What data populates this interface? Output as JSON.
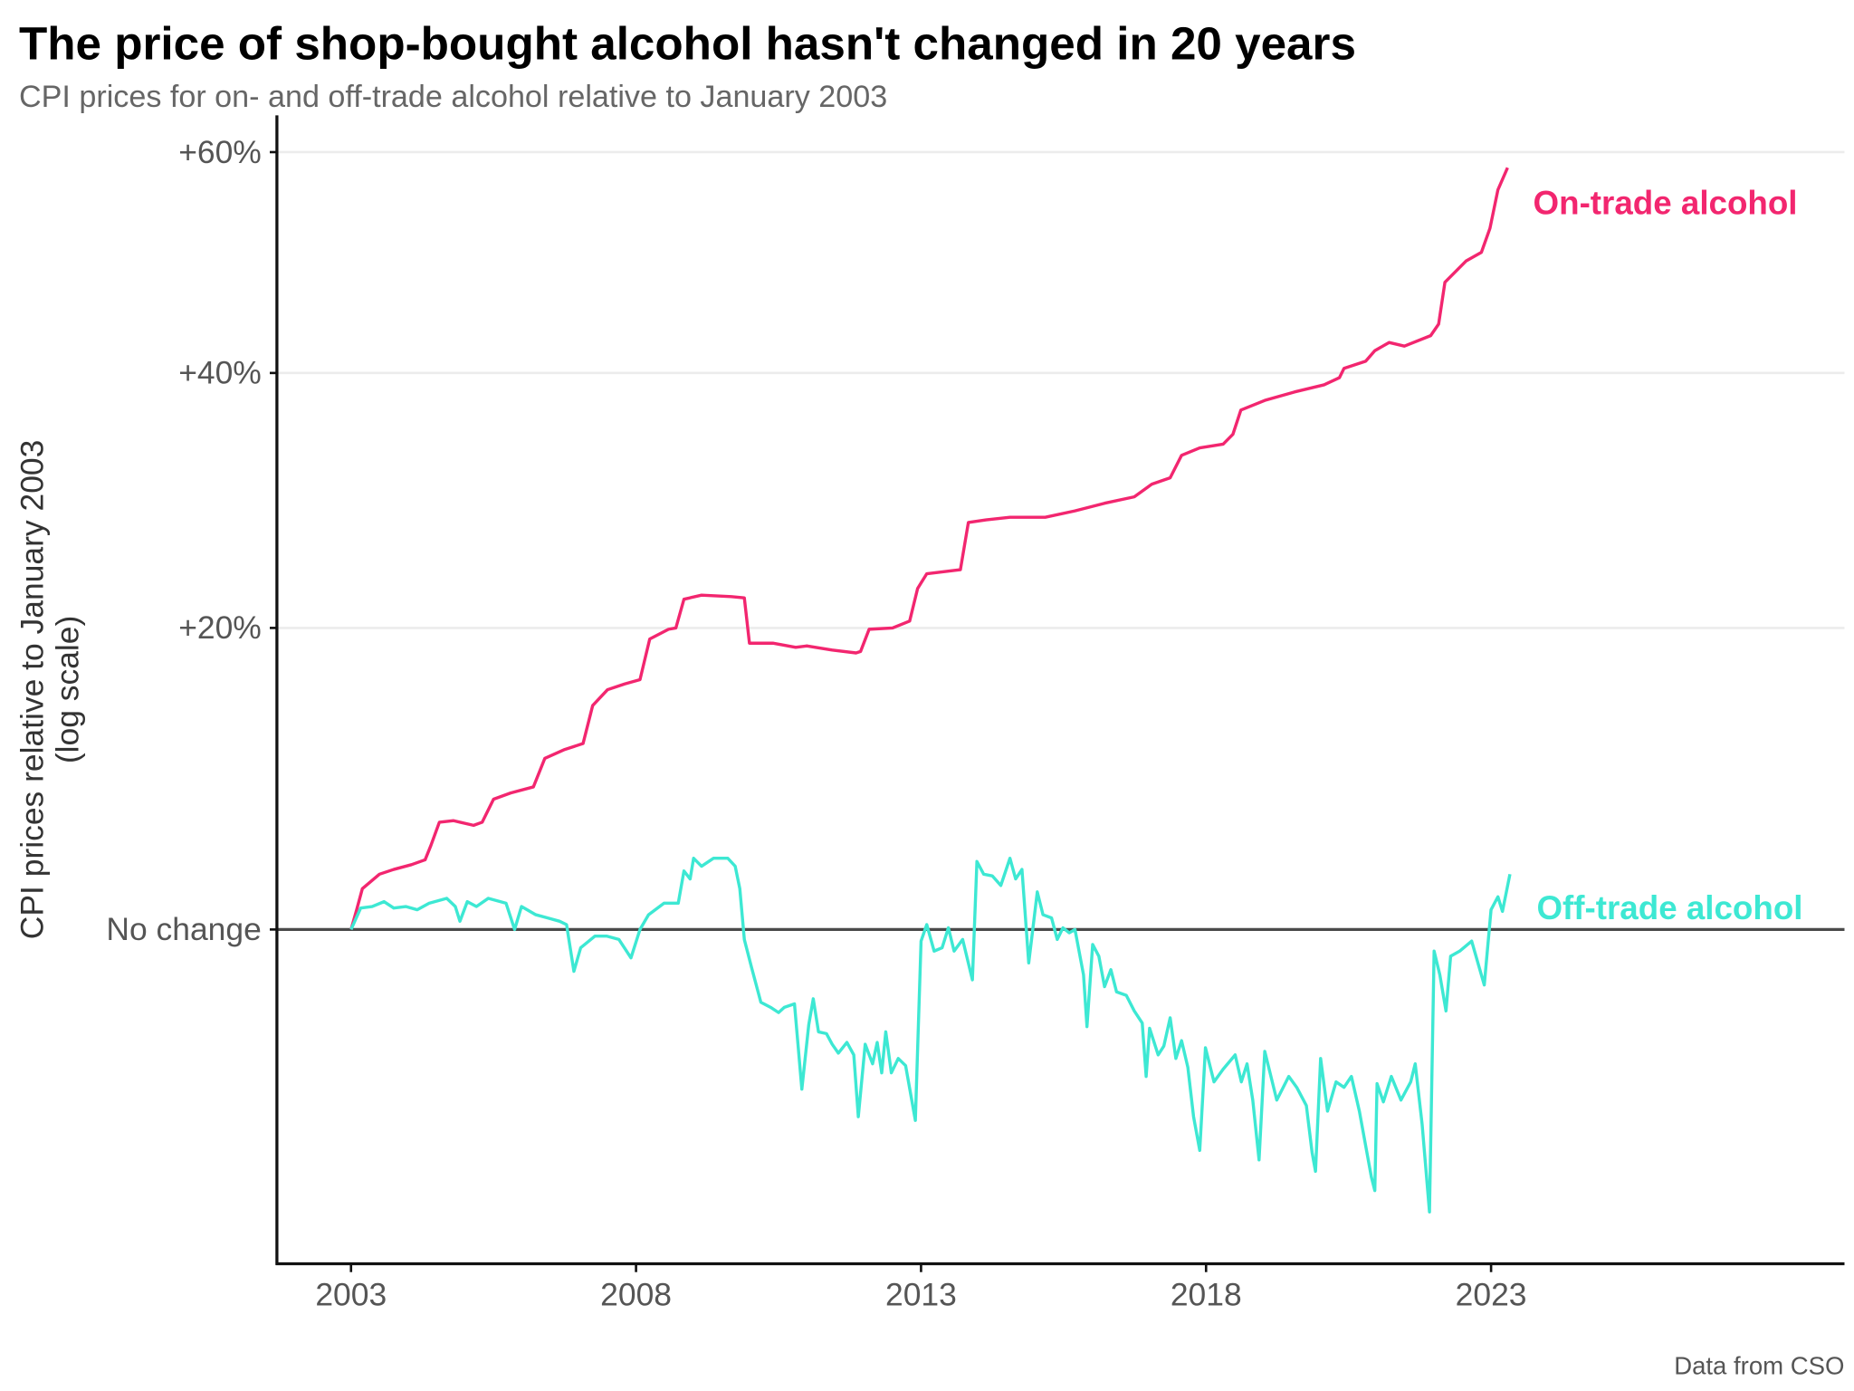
{
  "chart_data": {
    "type": "line",
    "title": "The price of shop-bought alcohol hasn't changed in 20 years",
    "subtitle": "CPI prices for on- and off-trade alcohol relative to January 2003",
    "ylabel": [
      "CPI prices relative to January 2003",
      "(log scale)"
    ],
    "xlabel": "",
    "caption": "Data from CSO",
    "y_scale": "log",
    "xlim": [
      2001.7,
      2029.2
    ],
    "ylim_percent": [
      -18.3,
      63.6
    ],
    "x_ticks": [
      2003,
      2008,
      2013,
      2018,
      2023
    ],
    "x_tick_labels": [
      "2003",
      "2008",
      "2013",
      "2018",
      "2023"
    ],
    "y_ticks": [
      0,
      20,
      40,
      60
    ],
    "y_tick_labels": [
      "No change",
      "+20%",
      "+40%",
      "+60%"
    ],
    "grid": "horizontal",
    "series": [
      {
        "name": "On-trade alcohol",
        "color": "#f2266f",
        "points": [
          [
            2003.0,
            0
          ],
          [
            2003.1,
            1.2
          ],
          [
            2003.2,
            2.5
          ],
          [
            2003.5,
            3.4
          ],
          [
            2003.75,
            3.7
          ],
          [
            2004.06,
            4.0
          ],
          [
            2004.3,
            4.3
          ],
          [
            2004.4,
            5.2
          ],
          [
            2004.55,
            6.7
          ],
          [
            2004.8,
            6.8
          ],
          [
            2005.15,
            6.5
          ],
          [
            2005.3,
            6.7
          ],
          [
            2005.5,
            8.2
          ],
          [
            2005.8,
            8.6
          ],
          [
            2006.2,
            9.0
          ],
          [
            2006.4,
            10.9
          ],
          [
            2006.75,
            11.5
          ],
          [
            2007.07,
            11.9
          ],
          [
            2007.24,
            14.5
          ],
          [
            2007.5,
            15.6
          ],
          [
            2007.8,
            16.0
          ],
          [
            2008.07,
            16.3
          ],
          [
            2008.24,
            19.2
          ],
          [
            2008.57,
            19.9
          ],
          [
            2008.7,
            20.0
          ],
          [
            2008.84,
            22.1
          ],
          [
            2009.15,
            22.4
          ],
          [
            2009.67,
            22.3
          ],
          [
            2009.9,
            22.2
          ],
          [
            2009.99,
            18.9
          ],
          [
            2010.4,
            18.9
          ],
          [
            2010.8,
            18.6
          ],
          [
            2011.0,
            18.7
          ],
          [
            2011.44,
            18.4
          ],
          [
            2011.86,
            18.2
          ],
          [
            2011.94,
            18.3
          ],
          [
            2012.09,
            19.9
          ],
          [
            2012.5,
            20.0
          ],
          [
            2012.8,
            20.5
          ],
          [
            2012.94,
            22.9
          ],
          [
            2013.1,
            24.0
          ],
          [
            2013.69,
            24.3
          ],
          [
            2013.83,
            27.9
          ],
          [
            2014.14,
            28.1
          ],
          [
            2014.56,
            28.3
          ],
          [
            2015.18,
            28.3
          ],
          [
            2015.7,
            28.8
          ],
          [
            2016.22,
            29.4
          ],
          [
            2016.74,
            29.9
          ],
          [
            2017.05,
            30.9
          ],
          [
            2017.37,
            31.4
          ],
          [
            2017.57,
            33.2
          ],
          [
            2017.89,
            33.8
          ],
          [
            2018.3,
            34.1
          ],
          [
            2018.47,
            34.9
          ],
          [
            2018.61,
            36.9
          ],
          [
            2019.03,
            37.7
          ],
          [
            2019.55,
            38.4
          ],
          [
            2020.07,
            39.0
          ],
          [
            2020.34,
            39.6
          ],
          [
            2020.42,
            40.4
          ],
          [
            2020.8,
            41.0
          ],
          [
            2020.96,
            41.9
          ],
          [
            2021.21,
            42.6
          ],
          [
            2021.48,
            42.3
          ],
          [
            2021.94,
            43.2
          ],
          [
            2022.08,
            44.2
          ],
          [
            2022.19,
            47.9
          ],
          [
            2022.56,
            49.8
          ],
          [
            2022.83,
            50.6
          ],
          [
            2022.98,
            52.8
          ],
          [
            2023.12,
            56.4
          ],
          [
            2023.29,
            58.5
          ]
        ]
      },
      {
        "name": "Off-trade alcohol",
        "color": "#3de8d3",
        "points": [
          [
            2003.0,
            0
          ],
          [
            2003.17,
            1.3
          ],
          [
            2003.37,
            1.4
          ],
          [
            2003.58,
            1.7
          ],
          [
            2003.75,
            1.3
          ],
          [
            2003.96,
            1.4
          ],
          [
            2004.16,
            1.2
          ],
          [
            2004.37,
            1.6
          ],
          [
            2004.68,
            1.9
          ],
          [
            2004.83,
            1.4
          ],
          [
            2004.91,
            0.5
          ],
          [
            2005.04,
            1.7
          ],
          [
            2005.2,
            1.4
          ],
          [
            2005.41,
            1.9
          ],
          [
            2005.72,
            1.6
          ],
          [
            2005.87,
            0
          ],
          [
            2005.99,
            1.4
          ],
          [
            2006.24,
            0.9
          ],
          [
            2006.45,
            0.7
          ],
          [
            2006.66,
            0.5
          ],
          [
            2006.78,
            0.3
          ],
          [
            2006.91,
            -2.5
          ],
          [
            2007.03,
            -1.1
          ],
          [
            2007.28,
            -0.4
          ],
          [
            2007.49,
            -0.4
          ],
          [
            2007.7,
            -0.6
          ],
          [
            2007.91,
            -1.7
          ],
          [
            2008.07,
            0
          ],
          [
            2008.22,
            0.9
          ],
          [
            2008.49,
            1.6
          ],
          [
            2008.74,
            1.6
          ],
          [
            2008.84,
            3.6
          ],
          [
            2008.95,
            3.1
          ],
          [
            2009.01,
            4.4
          ],
          [
            2009.15,
            3.9
          ],
          [
            2009.36,
            4.4
          ],
          [
            2009.61,
            4.4
          ],
          [
            2009.74,
            3.9
          ],
          [
            2009.82,
            2.5
          ],
          [
            2009.9,
            -0.6
          ],
          [
            2010.03,
            -2.3
          ],
          [
            2010.19,
            -4.3
          ],
          [
            2010.36,
            -4.6
          ],
          [
            2010.5,
            -4.9
          ],
          [
            2010.6,
            -4.6
          ],
          [
            2010.78,
            -4.4
          ],
          [
            2010.91,
            -9.2
          ],
          [
            2011.03,
            -5.6
          ],
          [
            2011.11,
            -4.1
          ],
          [
            2011.2,
            -6.0
          ],
          [
            2011.34,
            -6.1
          ],
          [
            2011.44,
            -6.7
          ],
          [
            2011.55,
            -7.2
          ],
          [
            2011.7,
            -6.6
          ],
          [
            2011.82,
            -7.3
          ],
          [
            2011.9,
            -10.7
          ],
          [
            2012.02,
            -6.7
          ],
          [
            2012.15,
            -7.8
          ],
          [
            2012.23,
            -6.6
          ],
          [
            2012.31,
            -8.3
          ],
          [
            2012.38,
            -6.0
          ],
          [
            2012.48,
            -8.3
          ],
          [
            2012.6,
            -7.5
          ],
          [
            2012.73,
            -7.9
          ],
          [
            2012.9,
            -10.9
          ],
          [
            2013.0,
            -0.7
          ],
          [
            2013.1,
            0.3
          ],
          [
            2013.23,
            -1.3
          ],
          [
            2013.37,
            -1.1
          ],
          [
            2013.48,
            0.1
          ],
          [
            2013.58,
            -1.3
          ],
          [
            2013.73,
            -0.6
          ],
          [
            2013.9,
            -3.0
          ],
          [
            2013.98,
            4.2
          ],
          [
            2014.1,
            3.4
          ],
          [
            2014.25,
            3.3
          ],
          [
            2014.4,
            2.7
          ],
          [
            2014.56,
            4.4
          ],
          [
            2014.66,
            3.1
          ],
          [
            2014.77,
            3.7
          ],
          [
            2014.89,
            -2.0
          ],
          [
            2015.04,
            2.3
          ],
          [
            2015.14,
            0.9
          ],
          [
            2015.29,
            0.7
          ],
          [
            2015.39,
            -0.6
          ],
          [
            2015.49,
            0.1
          ],
          [
            2015.6,
            -0.2
          ],
          [
            2015.7,
            0
          ],
          [
            2015.85,
            -2.7
          ],
          [
            2015.91,
            -5.7
          ],
          [
            2016.01,
            -0.9
          ],
          [
            2016.12,
            -1.6
          ],
          [
            2016.22,
            -3.4
          ],
          [
            2016.33,
            -2.4
          ],
          [
            2016.43,
            -3.7
          ],
          [
            2016.6,
            -3.9
          ],
          [
            2016.74,
            -4.8
          ],
          [
            2016.88,
            -5.5
          ],
          [
            2016.95,
            -8.5
          ],
          [
            2017.01,
            -5.8
          ],
          [
            2017.16,
            -7.3
          ],
          [
            2017.26,
            -6.8
          ],
          [
            2017.37,
            -5.2
          ],
          [
            2017.47,
            -7.5
          ],
          [
            2017.57,
            -6.5
          ],
          [
            2017.68,
            -8.0
          ],
          [
            2017.78,
            -10.7
          ],
          [
            2017.89,
            -12.5
          ],
          [
            2017.99,
            -6.9
          ],
          [
            2018.14,
            -8.8
          ],
          [
            2018.3,
            -8.1
          ],
          [
            2018.51,
            -7.3
          ],
          [
            2018.62,
            -8.8
          ],
          [
            2018.72,
            -7.8
          ],
          [
            2018.82,
            -9.8
          ],
          [
            2018.93,
            -13.0
          ],
          [
            2019.03,
            -7.1
          ],
          [
            2019.24,
            -9.8
          ],
          [
            2019.45,
            -8.5
          ],
          [
            2019.59,
            -9.1
          ],
          [
            2019.76,
            -10.1
          ],
          [
            2019.86,
            -12.6
          ],
          [
            2019.92,
            -13.6
          ],
          [
            2020.01,
            -7.5
          ],
          [
            2020.13,
            -10.4
          ],
          [
            2020.28,
            -8.8
          ],
          [
            2020.42,
            -9.1
          ],
          [
            2020.55,
            -8.5
          ],
          [
            2020.69,
            -10.4
          ],
          [
            2020.9,
            -13.9
          ],
          [
            2020.96,
            -14.6
          ],
          [
            2021.0,
            -8.9
          ],
          [
            2021.11,
            -9.9
          ],
          [
            2021.25,
            -8.5
          ],
          [
            2021.42,
            -9.8
          ],
          [
            2021.59,
            -8.8
          ],
          [
            2021.67,
            -7.8
          ],
          [
            2021.79,
            -11.1
          ],
          [
            2021.92,
            -15.7
          ],
          [
            2022.0,
            -1.3
          ],
          [
            2022.1,
            -2.7
          ],
          [
            2022.21,
            -4.8
          ],
          [
            2022.29,
            -1.6
          ],
          [
            2022.45,
            -1.3
          ],
          [
            2022.66,
            -0.7
          ],
          [
            2022.88,
            -3.3
          ],
          [
            2023.0,
            1.2
          ],
          [
            2023.12,
            2.0
          ],
          [
            2023.2,
            1.1
          ],
          [
            2023.33,
            3.4
          ]
        ]
      }
    ]
  }
}
